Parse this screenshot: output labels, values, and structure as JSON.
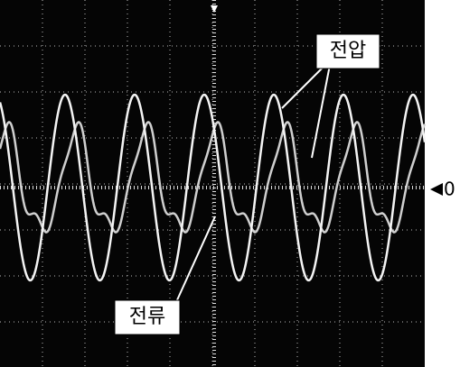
{
  "labels": {
    "voltage": "전압",
    "current": "전류"
  },
  "zero_marker": "0"
}
